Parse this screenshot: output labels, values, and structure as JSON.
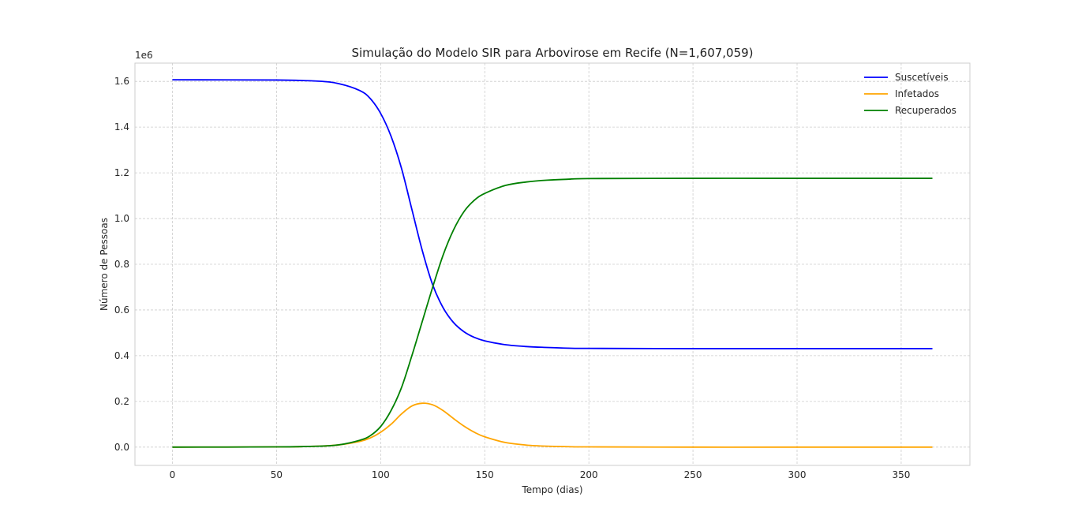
{
  "chart_data": {
    "type": "line",
    "title": "Simulação do Modelo SIR para Arbovirose em Recife (N=1,607,059)",
    "xlabel": "Tempo (dias)",
    "ylabel": "Número de Pessoas",
    "y_offset_label": "1e6",
    "xlim": [
      -18,
      383
    ],
    "ylim": [
      -0.08,
      1.68
    ],
    "x_ticks": [
      0,
      50,
      100,
      150,
      200,
      250,
      300,
      350
    ],
    "y_ticks": [
      0.0,
      0.2,
      0.4,
      0.6,
      0.8,
      1.0,
      1.2,
      1.4,
      1.6
    ],
    "y_tick_labels": [
      "0.0",
      "0.2",
      "0.4",
      "0.6",
      "0.8",
      "1.0",
      "1.2",
      "1.4",
      "1.6"
    ],
    "grid": true,
    "legend_position": "top-right",
    "series": [
      {
        "name": "Suscetíveis",
        "color": "#0000ff",
        "x": [
          0,
          50,
          70,
          80,
          90,
          95,
          100,
          105,
          110,
          115,
          120,
          125,
          130,
          135,
          140,
          145,
          150,
          160,
          170,
          180,
          190,
          200,
          250,
          300,
          365
        ],
        "y": [
          1.607,
          1.606,
          1.601,
          1.59,
          1.56,
          1.525,
          1.46,
          1.36,
          1.22,
          1.04,
          0.86,
          0.71,
          0.61,
          0.545,
          0.505,
          0.48,
          0.465,
          0.448,
          0.44,
          0.436,
          0.433,
          0.432,
          0.431,
          0.431,
          0.431
        ]
      },
      {
        "name": "Infetados",
        "color": "#ffa500",
        "x": [
          0,
          50,
          70,
          80,
          90,
          95,
          100,
          105,
          110,
          115,
          120,
          125,
          130,
          135,
          140,
          145,
          150,
          160,
          170,
          180,
          190,
          200,
          250,
          300,
          365
        ],
        "y": [
          0.0,
          0.001,
          0.004,
          0.01,
          0.025,
          0.04,
          0.065,
          0.1,
          0.145,
          0.18,
          0.192,
          0.185,
          0.16,
          0.125,
          0.092,
          0.065,
          0.045,
          0.02,
          0.009,
          0.004,
          0.002,
          0.001,
          0.0,
          0.0,
          0.0
        ]
      },
      {
        "name": "Recuperados",
        "color": "#008000",
        "x": [
          0,
          50,
          70,
          80,
          90,
          95,
          100,
          105,
          110,
          115,
          120,
          125,
          130,
          135,
          140,
          145,
          150,
          160,
          170,
          180,
          190,
          200,
          250,
          300,
          365
        ],
        "y": [
          0.0,
          0.001,
          0.004,
          0.01,
          0.03,
          0.05,
          0.09,
          0.16,
          0.26,
          0.4,
          0.55,
          0.7,
          0.84,
          0.95,
          1.03,
          1.08,
          1.11,
          1.145,
          1.16,
          1.168,
          1.172,
          1.175,
          1.176,
          1.176,
          1.176
        ]
      }
    ]
  }
}
